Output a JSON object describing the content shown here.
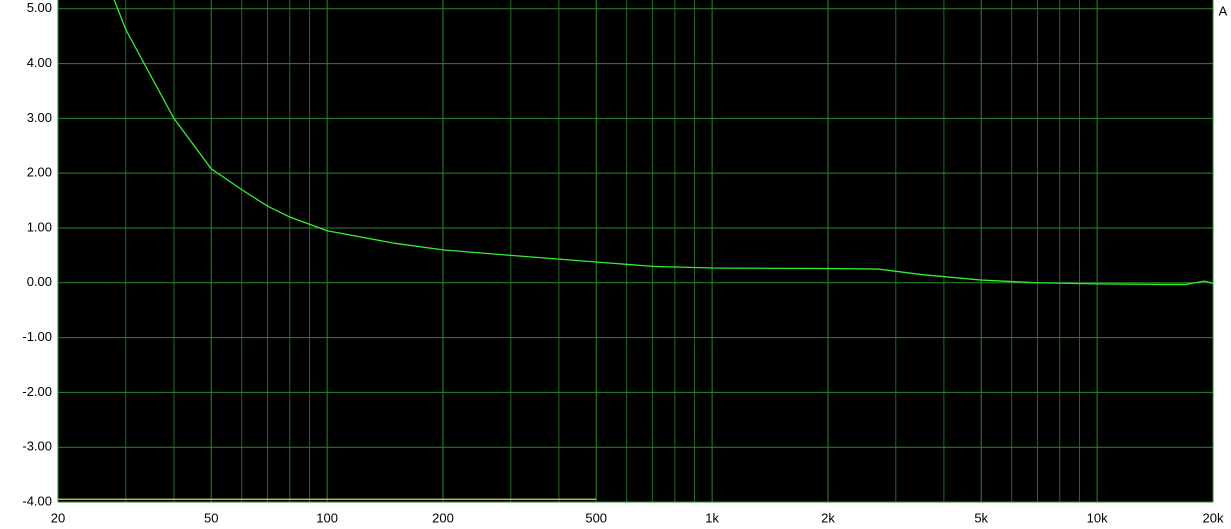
{
  "chart_data": {
    "type": "line",
    "log_x": true,
    "grid": true,
    "background": "#000000",
    "annotation": "A",
    "xlim": [
      20,
      20000
    ],
    "ylim": [
      -4,
      5.16
    ],
    "xticks": [
      20,
      50,
      100,
      200,
      500,
      {
        "value": 1000,
        "label": "1k"
      },
      {
        "value": 2000,
        "label": "2k"
      },
      {
        "value": 5000,
        "label": "5k"
      },
      {
        "value": 10000,
        "label": "10k"
      },
      {
        "value": 20000,
        "label": "20k"
      }
    ],
    "minor_xticks": [
      30,
      40,
      60,
      70,
      80,
      90,
      300,
      400,
      600,
      700,
      800,
      900,
      3000,
      4000,
      6000,
      7000,
      8000,
      9000
    ],
    "yticks": [
      {
        "value": 5,
        "label": "5.00"
      },
      {
        "value": 4,
        "label": "4.00"
      },
      {
        "value": 3,
        "label": "3.00"
      },
      {
        "value": 2,
        "label": "2.00"
      },
      {
        "value": 1,
        "label": "1.00"
      },
      {
        "value": 0,
        "label": "0.00"
      },
      {
        "value": -1,
        "label": "-1.00"
      },
      {
        "value": -2,
        "label": "-2.00"
      },
      {
        "value": -3,
        "label": "-3.00"
      },
      {
        "value": -4,
        "label": "-4.00"
      }
    ],
    "series": [
      {
        "color": "#33ee33",
        "x": [
          28,
          30,
          40,
          50,
          60,
          70,
          80,
          100,
          150,
          200,
          300,
          500,
          700,
          1000,
          2000,
          2700,
          3500,
          5000,
          7000,
          10000,
          15000,
          17000,
          19000,
          20000
        ],
        "values": [
          5.16,
          4.62,
          3.0,
          2.08,
          1.7,
          1.4,
          1.2,
          0.95,
          0.72,
          0.6,
          0.5,
          0.38,
          0.3,
          0.27,
          0.26,
          0.25,
          0.15,
          0.05,
          0.0,
          -0.02,
          -0.03,
          -0.03,
          0.03,
          -0.01
        ]
      },
      {
        "color": "#d8d830",
        "x": [
          20,
          500
        ],
        "values": [
          -3.95,
          -3.95
        ]
      }
    ]
  }
}
